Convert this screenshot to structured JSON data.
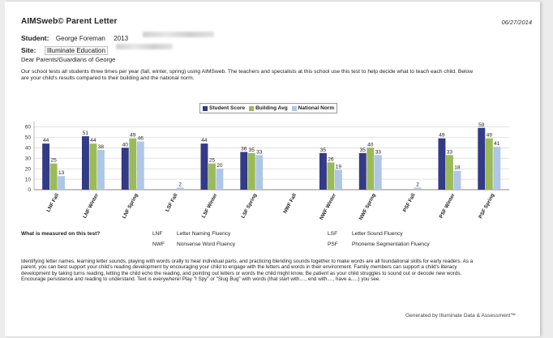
{
  "header": {
    "title": "AIMSweb© Parent Letter",
    "date": "06/27/2014",
    "student_label": "Student:",
    "student_name": "George Foreman",
    "student_year": "2013",
    "site_label": "Site:",
    "site_name": "Illuminate Education",
    "greeting_prefix": "Dear Parents/Guardians of",
    "greeting_name": "George"
  },
  "intro": "Our school tests all students three times per year (fall, winter, spring) using AIMSweb. The teachers and specialists at this school use this test to help decide what to teach each child. Below are your child's results compared to their building and the national norm.",
  "chart_data": {
    "type": "bar",
    "categories": [
      "LNF Fall",
      "LNF Winter",
      "LNF Spring",
      "LSF Fall",
      "LSF Winter",
      "LSF Spring",
      "NWF Fall",
      "NWF Winter",
      "NWF Spring",
      "PSF Fall",
      "PSF Winter",
      "PSF Spring"
    ],
    "series": [
      {
        "name": "Student Score",
        "color": "#333a86",
        "values": [
          44,
          51,
          40,
          null,
          44,
          36,
          null,
          35,
          35,
          null,
          49,
          59
        ]
      },
      {
        "name": "Building Avg",
        "color": "#9bbb59",
        "values": [
          25,
          44,
          49,
          null,
          25,
          35,
          null,
          26,
          40,
          null,
          33,
          49
        ]
      },
      {
        "name": "National Norm",
        "color": "#aec7e6",
        "values": [
          13,
          38,
          46,
          2,
          20,
          33,
          null,
          19,
          33,
          2,
          18,
          41
        ]
      }
    ],
    "yticks": [
      0,
      10,
      20,
      30,
      40,
      50,
      60
    ],
    "ylim": [
      0,
      65
    ],
    "grid": true,
    "legend": "top-center"
  },
  "glossary": {
    "question": "What is measured on this test?",
    "items": [
      {
        "abbr": "LNF",
        "name": "Letter Naming Fluency"
      },
      {
        "abbr": "LSF",
        "name": "Letter Sound Fluency"
      },
      {
        "abbr": "NWF",
        "name": "Nonsense Word Fluency"
      },
      {
        "abbr": "PSF",
        "name": "Phoneme Segmentation Fluency"
      }
    ]
  },
  "body_text": "Identifying letter names, learning letter sounds, playing with words orally to hear individual parts, and practicing blending sounds together to make words are all foundational skills for early readers.  As a parent, you can best support your child's reading development by encouraging your child to engage with the letters and words in their environment. Family members can support a child's literacy development by taking turns reading, letting the child echo the reading, and pointing out letters or words the child might know.  Be patient as your child struggles to sound out or decode new words.  Encourage persistence and reading to understand. Text is everywhere! Play \"I Spy\" or \"Slug Bug\" with words (that start with...., end with...., have a.....) you see.",
  "footer": "Generated by Illuminate Data & Assessment™"
}
